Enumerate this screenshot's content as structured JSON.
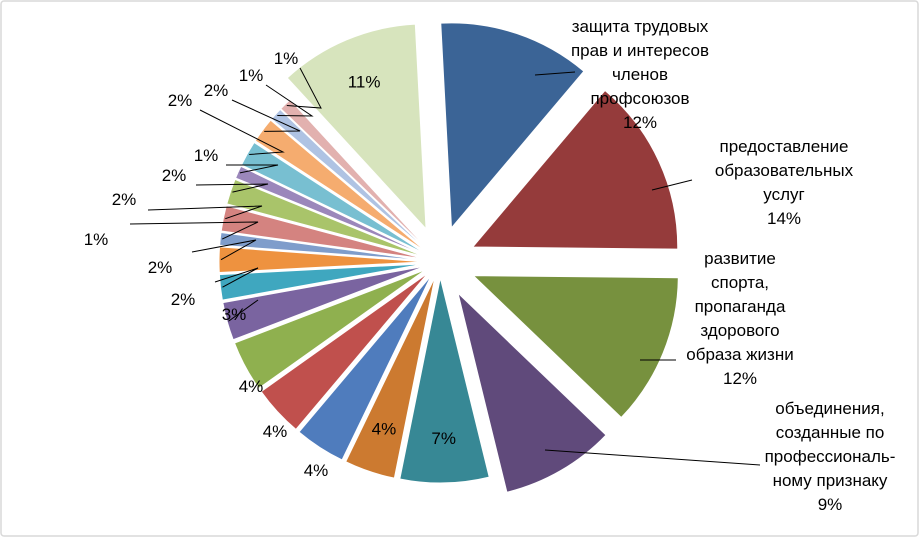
{
  "chart_data": {
    "type": "pie",
    "exploded": true,
    "series": [
      {
        "name": "",
        "slices": [
          {
            "label": "защита трудовых прав и интересов членов профсоюзов",
            "label_lines": [
              "защита трудовых",
              "прав и интересов",
              "членов",
              "профсоюзов"
            ],
            "pct_text": "12%",
            "value": 12,
            "color": "#3B6496"
          },
          {
            "label": "предоставление образовательных услуг",
            "label_lines": [
              "предоставление",
              "образовательных",
              "услуг"
            ],
            "pct_text": "14%",
            "value": 14,
            "color": "#953B3B"
          },
          {
            "label": "развитие спорта, пропаганда здорового образа жизни",
            "label_lines": [
              "развитие",
              "спорта,",
              "пропаганда",
              "здорового",
              "образа жизни"
            ],
            "pct_text": "12%",
            "value": 12,
            "color": "#77913E"
          },
          {
            "label": "объединения, созданные по профессиональному признаку",
            "label_lines": [
              "объединения,",
              "созданные по",
              "профессиональ-",
              "ному признаку"
            ],
            "pct_text": "9%",
            "value": 9,
            "color": "#604A7B"
          },
          {
            "label": "",
            "label_lines": [],
            "pct_text": "7%",
            "value": 7,
            "color": "#378895"
          },
          {
            "label": "",
            "label_lines": [],
            "pct_text": "4%",
            "value": 4,
            "color": "#CC7A30"
          },
          {
            "label": "",
            "label_lines": [],
            "pct_text": "4%",
            "value": 4,
            "color": "#4F7CBD"
          },
          {
            "label": "",
            "label_lines": [],
            "pct_text": "4%",
            "value": 4,
            "color": "#C0504D"
          },
          {
            "label": "",
            "label_lines": [],
            "pct_text": "4%",
            "value": 4,
            "color": "#8FB04F"
          },
          {
            "label": "",
            "label_lines": [],
            "pct_text": "3%",
            "value": 3,
            "color": "#7A64A0"
          },
          {
            "label": "",
            "label_lines": [],
            "pct_text": "2%",
            "value": 2,
            "color": "#3FA7BF"
          },
          {
            "label": "",
            "label_lines": [],
            "pct_text": "2%",
            "value": 2,
            "color": "#EE923F"
          },
          {
            "label": "",
            "label_lines": [],
            "pct_text": "1%",
            "value": 1,
            "color": "#7F9DCB"
          },
          {
            "label": "",
            "label_lines": [],
            "pct_text": "2%",
            "value": 2,
            "color": "#D48380"
          },
          {
            "label": "",
            "label_lines": [],
            "pct_text": "2%",
            "value": 2,
            "color": "#A9C46A"
          },
          {
            "label": "",
            "label_lines": [],
            "pct_text": "1%",
            "value": 1,
            "color": "#9B87BB"
          },
          {
            "label": "",
            "label_lines": [],
            "pct_text": "2%",
            "value": 2,
            "color": "#78BFD1"
          },
          {
            "label": "",
            "label_lines": [],
            "pct_text": "2%",
            "value": 2,
            "color": "#F5AC6F"
          },
          {
            "label": "",
            "label_lines": [],
            "pct_text": "1%",
            "value": 1,
            "color": "#AFC3E3"
          },
          {
            "label": "",
            "label_lines": [],
            "pct_text": "1%",
            "value": 1,
            "color": "#E2B1AF"
          },
          {
            "label": "",
            "label_lines": [],
            "pct_text": "11%",
            "value": 11,
            "color": "#D7E4BD"
          }
        ]
      }
    ],
    "title": "",
    "legend": "none",
    "frame_border_color": "#D9D9D9",
    "leader_line_color": "#000000"
  }
}
